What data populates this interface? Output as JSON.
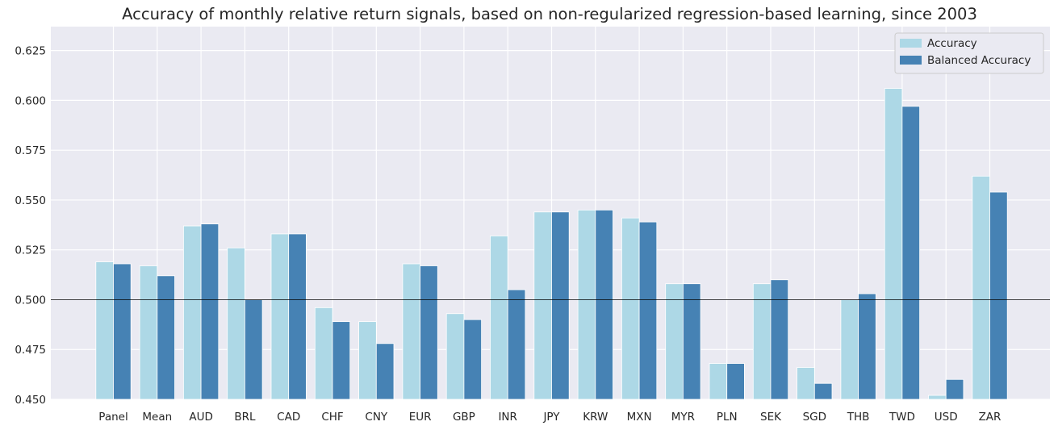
{
  "chart_data": {
    "type": "bar",
    "title": "Accuracy of monthly relative return signals, based on non-regularized regression-based learning, since 2003",
    "xlabel": "",
    "ylabel": "",
    "ylim": [
      0.45,
      0.637
    ],
    "yticks": [
      "0.450",
      "0.475",
      "0.500",
      "0.525",
      "0.550",
      "0.575",
      "0.600",
      "0.625"
    ],
    "reference_line": 0.5,
    "grid": true,
    "legend_position": "top-right",
    "categories": [
      "Panel",
      "Mean",
      "AUD",
      "BRL",
      "CAD",
      "CHF",
      "CNY",
      "EUR",
      "GBP",
      "INR",
      "JPY",
      "KRW",
      "MXN",
      "MYR",
      "PLN",
      "SEK",
      "SGD",
      "THB",
      "TWD",
      "USD",
      "ZAR"
    ],
    "series": [
      {
        "name": "Accuracy",
        "color": "#add8e6",
        "values": [
          0.519,
          0.517,
          0.537,
          0.526,
          0.533,
          0.496,
          0.489,
          0.518,
          0.493,
          0.532,
          0.544,
          0.545,
          0.541,
          0.508,
          0.468,
          0.508,
          0.466,
          0.5,
          0.606,
          0.452,
          0.562
        ]
      },
      {
        "name": "Balanced Accuracy",
        "color": "#4682b4",
        "values": [
          0.518,
          0.512,
          0.538,
          0.5,
          0.533,
          0.489,
          0.478,
          0.517,
          0.49,
          0.505,
          0.544,
          0.545,
          0.539,
          0.508,
          0.468,
          0.51,
          0.458,
          0.503,
          0.597,
          0.46,
          0.554
        ]
      }
    ]
  }
}
